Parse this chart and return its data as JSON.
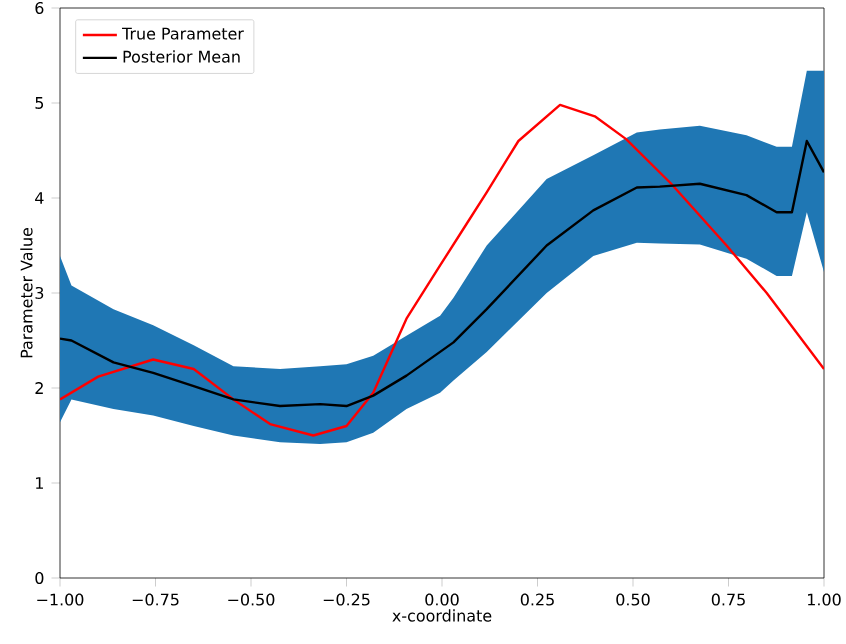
{
  "chart_data": {
    "type": "line",
    "xlabel": "x-coordinate",
    "ylabel": "Parameter Value",
    "xlim": [
      -1,
      1
    ],
    "ylim": [
      0,
      6
    ],
    "xticks": [
      {
        "value": -1,
        "label": "−1.00"
      },
      {
        "value": -0.75,
        "label": "−0.75"
      },
      {
        "value": -0.5,
        "label": "−0.50"
      },
      {
        "value": -0.25,
        "label": "−0.25"
      },
      {
        "value": 0,
        "label": "0.00"
      },
      {
        "value": 0.25,
        "label": "0.25"
      },
      {
        "value": 0.5,
        "label": "0.50"
      },
      {
        "value": 0.75,
        "label": "0.75"
      },
      {
        "value": 1,
        "label": "1.00"
      }
    ],
    "yticks": [
      0,
      1,
      2,
      3,
      4,
      5,
      6
    ],
    "legend": "top left",
    "grid": false,
    "marker": "none",
    "line_style": "solid",
    "series": [
      {
        "name": "True Parameter",
        "color": "#ff0000",
        "x": [
          -1,
          -0.9,
          -0.756,
          -0.65,
          -0.546,
          -0.45,
          -0.337,
          -0.25,
          -0.18,
          -0.093,
          -0.005,
          0.06,
          0.117,
          0.2,
          0.309,
          0.4,
          0.482,
          0.6,
          0.745,
          0.85,
          1.0
        ],
        "values": [
          1.88,
          2.12,
          2.3,
          2.2,
          1.88,
          1.62,
          1.5,
          1.6,
          1.95,
          2.73,
          3.29,
          3.7,
          4.06,
          4.6,
          4.98,
          4.86,
          4.62,
          4.15,
          3.5,
          3.0,
          2.2
        ]
      },
      {
        "name": "Posterior Mean",
        "color": "#000000",
        "x": [
          -1,
          -0.97,
          -0.86,
          -0.756,
          -0.65,
          -0.546,
          -0.424,
          -0.319,
          -0.25,
          -0.18,
          -0.093,
          -0.005,
          0.03,
          0.117,
          0.274,
          0.396,
          0.51,
          0.57,
          0.675,
          0.797,
          0.876,
          0.916,
          0.955,
          1.0
        ],
        "values": [
          2.52,
          2.5,
          2.27,
          2.16,
          2.02,
          1.88,
          1.81,
          1.83,
          1.81,
          1.92,
          2.13,
          2.38,
          2.48,
          2.83,
          3.5,
          3.87,
          4.11,
          4.12,
          4.15,
          4.03,
          3.85,
          3.85,
          4.6,
          4.27
        ],
        "upper": [
          3.39,
          3.08,
          2.83,
          2.66,
          2.45,
          2.23,
          2.2,
          2.23,
          2.25,
          2.34,
          2.55,
          2.76,
          2.95,
          3.5,
          4.2,
          4.45,
          4.69,
          4.72,
          4.76,
          4.66,
          4.54,
          4.54,
          5.34,
          5.34
        ],
        "lower": [
          1.64,
          1.88,
          1.78,
          1.71,
          1.6,
          1.5,
          1.43,
          1.41,
          1.43,
          1.53,
          1.78,
          1.95,
          2.08,
          2.38,
          3.0,
          3.39,
          3.53,
          3.52,
          3.51,
          3.36,
          3.18,
          3.18,
          3.85,
          3.22
        ]
      }
    ]
  }
}
